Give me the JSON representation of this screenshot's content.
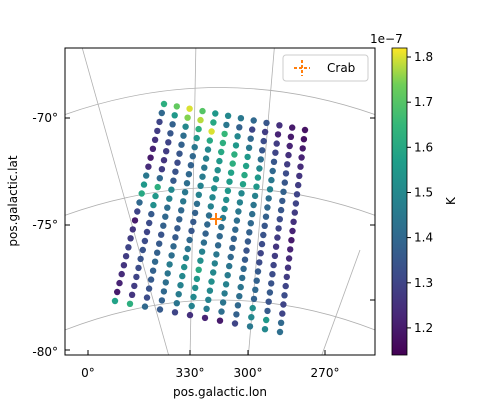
{
  "chart_data": {
    "type": "scatter",
    "projection": "galactic sky map",
    "xlabel": "pos.galactic.lon",
    "ylabel": "pos.galactic.lat",
    "lon_ticks": [
      "0°",
      "330°",
      "300°",
      "270°"
    ],
    "lat_ticks": [
      "-70°",
      "-75°",
      "-80°"
    ],
    "legend": {
      "label": "Crab",
      "placement": "top-right",
      "marker": "plus",
      "color": "#ff7f0e"
    },
    "colorbar": {
      "label": "K",
      "multiplier": "1e−7",
      "ticks": [
        "1.2",
        "1.3",
        "1.4",
        "1.5",
        "1.6",
        "1.7",
        "1.8"
      ],
      "range": [
        1.14,
        1.82
      ],
      "colormap": "viridis"
    },
    "grid": true,
    "grid_points": {
      "rows": 23,
      "cols": 12,
      "values": [
        [
          1.62,
          1.72,
          1.8,
          1.7,
          1.55,
          1.5,
          1.45,
          1.4,
          1.35,
          1.25,
          1.2,
          1.18
        ],
        [
          1.4,
          1.55,
          1.75,
          1.78,
          1.6,
          1.45,
          1.38,
          1.3,
          1.28,
          1.22,
          1.2,
          1.18
        ],
        [
          1.3,
          1.38,
          1.5,
          1.62,
          1.8,
          1.65,
          1.5,
          1.4,
          1.32,
          1.28,
          1.22,
          1.2
        ],
        [
          1.28,
          1.35,
          1.42,
          1.55,
          1.6,
          1.62,
          1.55,
          1.45,
          1.35,
          1.3,
          1.25,
          1.22
        ],
        [
          1.25,
          1.3,
          1.38,
          1.45,
          1.5,
          1.6,
          1.62,
          1.55,
          1.42,
          1.35,
          1.28,
          1.24
        ],
        [
          1.22,
          1.28,
          1.35,
          1.4,
          1.48,
          1.55,
          1.62,
          1.58,
          1.5,
          1.4,
          1.32,
          1.26
        ],
        [
          1.2,
          1.26,
          1.32,
          1.38,
          1.45,
          1.52,
          1.58,
          1.6,
          1.55,
          1.45,
          1.35,
          1.28
        ],
        [
          1.24,
          1.28,
          1.34,
          1.4,
          1.46,
          1.52,
          1.56,
          1.58,
          1.55,
          1.48,
          1.38,
          1.3
        ],
        [
          1.45,
          1.4,
          1.36,
          1.42,
          1.48,
          1.52,
          1.55,
          1.5,
          1.48,
          1.42,
          1.36,
          1.3
        ],
        [
          1.55,
          1.62,
          1.5,
          1.45,
          1.48,
          1.5,
          1.52,
          1.48,
          1.44,
          1.4,
          1.35,
          1.28
        ],
        [
          1.6,
          1.55,
          1.48,
          1.45,
          1.42,
          1.48,
          1.5,
          1.45,
          1.42,
          1.38,
          1.32,
          1.25
        ],
        [
          1.4,
          1.52,
          1.42,
          1.4,
          1.38,
          1.42,
          1.46,
          1.42,
          1.4,
          1.35,
          1.3,
          1.22
        ],
        [
          1.3,
          1.36,
          1.4,
          1.38,
          1.36,
          1.4,
          1.42,
          1.4,
          1.38,
          1.34,
          1.28,
          1.2
        ],
        [
          1.2,
          1.32,
          1.38,
          1.36,
          1.35,
          1.38,
          1.4,
          1.38,
          1.36,
          1.32,
          1.26,
          1.22
        ],
        [
          1.26,
          1.3,
          1.34,
          1.36,
          1.4,
          1.42,
          1.4,
          1.38,
          1.34,
          1.3,
          1.28,
          1.24
        ],
        [
          1.28,
          1.32,
          1.36,
          1.4,
          1.44,
          1.48,
          1.45,
          1.4,
          1.36,
          1.32,
          1.3,
          1.26
        ],
        [
          1.3,
          1.34,
          1.38,
          1.42,
          1.48,
          1.52,
          1.48,
          1.44,
          1.4,
          1.36,
          1.32,
          1.28
        ],
        [
          1.28,
          1.34,
          1.4,
          1.46,
          1.52,
          1.6,
          1.5,
          1.46,
          1.42,
          1.38,
          1.34,
          1.3
        ],
        [
          1.26,
          1.32,
          1.38,
          1.44,
          1.5,
          1.55,
          1.52,
          1.48,
          1.44,
          1.4,
          1.36,
          1.32
        ],
        [
          1.24,
          1.3,
          1.36,
          1.42,
          1.48,
          1.52,
          1.5,
          1.46,
          1.42,
          1.38,
          1.34,
          1.3
        ],
        [
          1.22,
          1.28,
          1.34,
          1.4,
          1.46,
          1.5,
          1.48,
          1.44,
          1.4,
          1.52,
          1.36,
          1.3
        ],
        [
          1.2,
          1.26,
          1.32,
          1.38,
          1.44,
          1.48,
          1.46,
          1.42,
          1.38,
          1.5,
          1.55,
          1.4
        ],
        [
          1.58,
          1.62,
          1.4,
          1.36,
          1.3,
          1.25,
          1.22,
          1.2,
          1.3,
          1.45,
          1.5,
          1.42
        ]
      ]
    }
  }
}
